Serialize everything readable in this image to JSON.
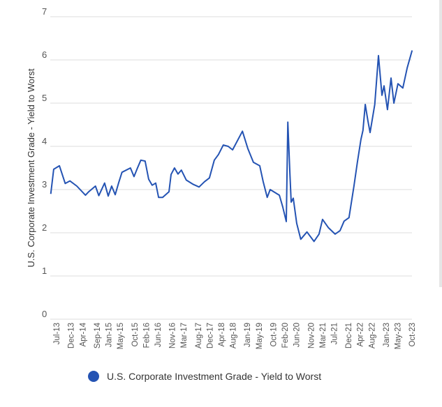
{
  "chart_data": {
    "type": "line",
    "title": "",
    "xlabel": "",
    "ylabel": "U.S. Corporate Investment Grade - Yield to Worst",
    "ylim": [
      0,
      7
    ],
    "yticks": [
      "0",
      "1",
      "2",
      "3",
      "4",
      "5",
      "6",
      "7"
    ],
    "grid": true,
    "legend_position": "bottom",
    "xticks": [
      {
        "label": "Jul-13",
        "date": "2013-07"
      },
      {
        "label": "Dec-13",
        "date": "2013-12"
      },
      {
        "label": "Apr-14",
        "date": "2014-04"
      },
      {
        "label": "Sep-14",
        "date": "2014-09"
      },
      {
        "label": "Jan-15",
        "date": "2015-01"
      },
      {
        "label": "May-15",
        "date": "2015-05"
      },
      {
        "label": "Oct-15",
        "date": "2015-10"
      },
      {
        "label": "Feb-16",
        "date": "2016-02"
      },
      {
        "label": "Jun-16",
        "date": "2016-06"
      },
      {
        "label": "Nov-16",
        "date": "2016-11"
      },
      {
        "label": "Mar-17",
        "date": "2017-03"
      },
      {
        "label": "Aug-17",
        "date": "2017-08"
      },
      {
        "label": "Dec-17",
        "date": "2017-12"
      },
      {
        "label": "Apr-18",
        "date": "2018-04"
      },
      {
        "label": "Aug-18",
        "date": "2018-08"
      },
      {
        "label": "Jan-19",
        "date": "2019-01"
      },
      {
        "label": "May-19",
        "date": "2019-05"
      },
      {
        "label": "Oct-19",
        "date": "2019-10"
      },
      {
        "label": "Feb-20",
        "date": "2020-02"
      },
      {
        "label": "Jun-20",
        "date": "2020-06"
      },
      {
        "label": "Nov-20",
        "date": "2020-11"
      },
      {
        "label": "Mar-21",
        "date": "2021-03"
      },
      {
        "label": "Jul-21",
        "date": "2021-07"
      },
      {
        "label": "Dec-21",
        "date": "2021-12"
      },
      {
        "label": "Apr-22",
        "date": "2022-04"
      },
      {
        "label": "Aug-22",
        "date": "2022-08"
      },
      {
        "label": "Jan-23",
        "date": "2023-01"
      },
      {
        "label": "May-23",
        "date": "2023-05"
      },
      {
        "label": "Oct-23",
        "date": "2023-10"
      }
    ],
    "series": [
      {
        "name": "U.S. Corporate Investment Grade - Yield to Worst",
        "color": "#2453b3",
        "points": [
          [
            "2013-05-01",
            2.9
          ],
          [
            "2013-06-01",
            3.47
          ],
          [
            "2013-08-01",
            3.55
          ],
          [
            "2013-10-01",
            3.14
          ],
          [
            "2013-11-20",
            3.2
          ],
          [
            "2014-02-01",
            3.08
          ],
          [
            "2014-05-01",
            2.87
          ],
          [
            "2014-06-05",
            2.95
          ],
          [
            "2014-08-15",
            3.08
          ],
          [
            "2014-09-20",
            2.86
          ],
          [
            "2014-11-20",
            3.15
          ],
          [
            "2014-12-28",
            2.85
          ],
          [
            "2015-02-03",
            3.08
          ],
          [
            "2015-03-10",
            2.88
          ],
          [
            "2015-04-15",
            3.15
          ],
          [
            "2015-05-20",
            3.4
          ],
          [
            "2015-08-18",
            3.5
          ],
          [
            "2015-09-25",
            3.3
          ],
          [
            "2015-11-01",
            3.5
          ],
          [
            "2015-12-06",
            3.68
          ],
          [
            "2016-01-20",
            3.66
          ],
          [
            "2016-02-27",
            3.24
          ],
          [
            "2016-04-03",
            3.1
          ],
          [
            "2016-05-10",
            3.15
          ],
          [
            "2016-06-10",
            2.82
          ],
          [
            "2016-07-22",
            2.82
          ],
          [
            "2016-09-28",
            2.95
          ],
          [
            "2016-10-20",
            3.35
          ],
          [
            "2016-11-25",
            3.5
          ],
          [
            "2017-01-01",
            3.36
          ],
          [
            "2017-02-06",
            3.45
          ],
          [
            "2017-03-28",
            3.22
          ],
          [
            "2017-06-10",
            3.12
          ],
          [
            "2017-08-10",
            3.06
          ],
          [
            "2017-10-06",
            3.18
          ],
          [
            "2017-11-28",
            3.27
          ],
          [
            "2018-01-18",
            3.68
          ],
          [
            "2018-03-01",
            3.81
          ],
          [
            "2018-04-22",
            4.03
          ],
          [
            "2018-06-12",
            4.0
          ],
          [
            "2018-07-28",
            3.92
          ],
          [
            "2018-11-10",
            4.35
          ],
          [
            "2019-01-06",
            3.95
          ],
          [
            "2019-03-04",
            3.63
          ],
          [
            "2019-05-10",
            3.55
          ],
          [
            "2019-06-15",
            3.19
          ],
          [
            "2019-07-28",
            2.82
          ],
          [
            "2019-08-28",
            3.0
          ],
          [
            "2019-12-03",
            2.87
          ],
          [
            "2020-01-08",
            2.6
          ],
          [
            "2020-02-15",
            2.26
          ],
          [
            "2020-03-01",
            4.56
          ],
          [
            "2020-03-22",
            3.4
          ],
          [
            "2020-04-06",
            2.71
          ],
          [
            "2020-04-28",
            2.8
          ],
          [
            "2020-06-03",
            2.22
          ],
          [
            "2020-07-15",
            1.85
          ],
          [
            "2020-09-20",
            2.02
          ],
          [
            "2020-12-03",
            1.8
          ],
          [
            "2021-01-25",
            1.97
          ],
          [
            "2021-03-01",
            2.31
          ],
          [
            "2021-05-01",
            2.12
          ],
          [
            "2021-07-12",
            1.97
          ],
          [
            "2021-09-03",
            2.05
          ],
          [
            "2021-10-15",
            2.27
          ],
          [
            "2021-12-06",
            2.35
          ],
          [
            "2022-01-28",
            3.08
          ],
          [
            "2022-03-03",
            3.63
          ],
          [
            "2022-04-10",
            4.16
          ],
          [
            "2022-05-01",
            4.37
          ],
          [
            "2022-05-25",
            4.97
          ],
          [
            "2022-06-22",
            4.6
          ],
          [
            "2022-07-15",
            4.32
          ],
          [
            "2022-09-03",
            4.97
          ],
          [
            "2022-10-12",
            6.1
          ],
          [
            "2022-11-18",
            5.18
          ],
          [
            "2022-12-10",
            5.4
          ],
          [
            "2023-01-15",
            4.85
          ],
          [
            "2023-02-22",
            5.58
          ],
          [
            "2023-03-22",
            5.0
          ],
          [
            "2023-05-04",
            5.45
          ],
          [
            "2023-06-25",
            5.35
          ],
          [
            "2023-08-10",
            5.82
          ],
          [
            "2023-10-01",
            6.22
          ]
        ]
      }
    ]
  }
}
